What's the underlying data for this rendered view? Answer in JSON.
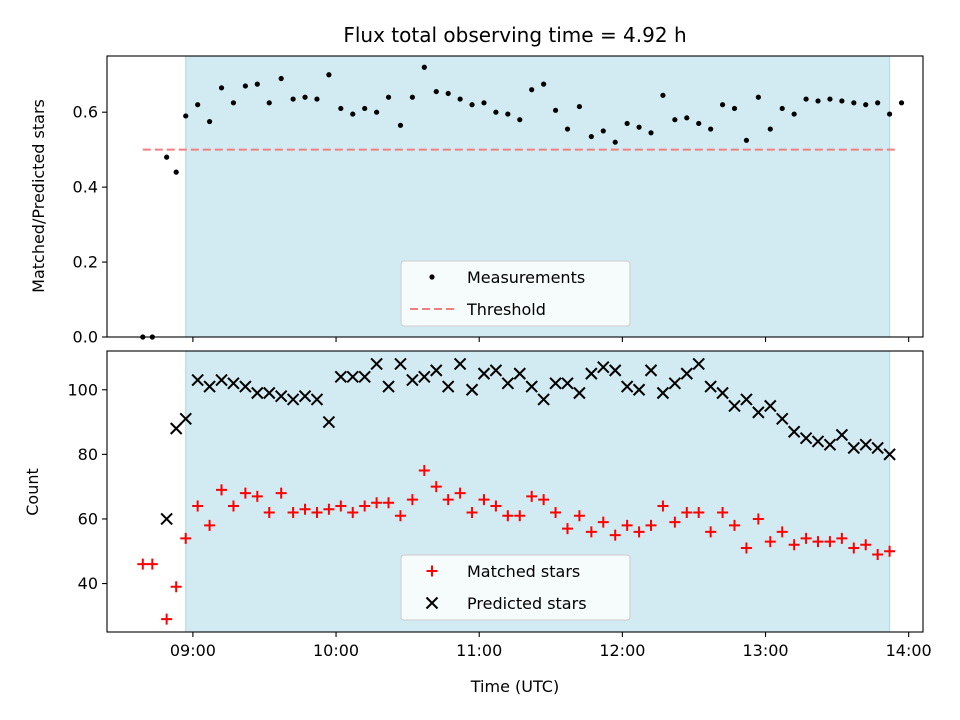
{
  "chart_data": [
    {
      "type": "scatter",
      "title": "Flux total observing time = 4.92 h",
      "xlabel": "",
      "ylabel": "Matched/Predicted stars",
      "ylim": [
        0,
        0.75
      ],
      "yticks": [
        0.0,
        0.2,
        0.4,
        0.6
      ],
      "ytick_labels": [
        "0.0",
        "0.2",
        "0.4",
        "0.6"
      ],
      "xlim": [
        "08:24",
        "14:06"
      ],
      "xticks": [
        "09:00",
        "10:00",
        "11:00",
        "12:00",
        "13:00",
        "14:00"
      ],
      "shaded_range": [
        "08:57",
        "13:52"
      ],
      "shade_color": "#add8e6",
      "threshold": {
        "label": "Threshold",
        "value": 0.5,
        "xrange": [
          "08:39",
          "13:55"
        ],
        "color": "#f08080",
        "style": "dashed"
      },
      "legend": {
        "placement": "lower center",
        "entries": [
          "Measurements",
          "Threshold"
        ]
      },
      "series": [
        {
          "name": "Measurements",
          "marker": "dot",
          "color": "#000000",
          "points": [
            {
              "x": "08:39",
              "y": 0.0
            },
            {
              "x": "08:43",
              "y": 0.0
            },
            {
              "x": "08:49",
              "y": 0.48
            },
            {
              "x": "08:53",
              "y": 0.44
            },
            {
              "x": "08:57",
              "y": 0.59
            },
            {
              "x": "09:02",
              "y": 0.62
            },
            {
              "x": "09:07",
              "y": 0.575
            },
            {
              "x": "09:12",
              "y": 0.665
            },
            {
              "x": "09:17",
              "y": 0.625
            },
            {
              "x": "09:22",
              "y": 0.67
            },
            {
              "x": "09:27",
              "y": 0.675
            },
            {
              "x": "09:32",
              "y": 0.625
            },
            {
              "x": "09:37",
              "y": 0.69
            },
            {
              "x": "09:42",
              "y": 0.635
            },
            {
              "x": "09:47",
              "y": 0.64
            },
            {
              "x": "09:52",
              "y": 0.635
            },
            {
              "x": "09:57",
              "y": 0.7
            },
            {
              "x": "10:02",
              "y": 0.61
            },
            {
              "x": "10:07",
              "y": 0.595
            },
            {
              "x": "10:12",
              "y": 0.61
            },
            {
              "x": "10:17",
              "y": 0.6
            },
            {
              "x": "10:22",
              "y": 0.64
            },
            {
              "x": "10:27",
              "y": 0.565
            },
            {
              "x": "10:32",
              "y": 0.64
            },
            {
              "x": "10:37",
              "y": 0.72
            },
            {
              "x": "10:42",
              "y": 0.655
            },
            {
              "x": "10:47",
              "y": 0.65
            },
            {
              "x": "10:52",
              "y": 0.635
            },
            {
              "x": "10:57",
              "y": 0.62
            },
            {
              "x": "11:02",
              "y": 0.625
            },
            {
              "x": "11:07",
              "y": 0.6
            },
            {
              "x": "11:12",
              "y": 0.595
            },
            {
              "x": "11:17",
              "y": 0.58
            },
            {
              "x": "11:22",
              "y": 0.66
            },
            {
              "x": "11:27",
              "y": 0.675
            },
            {
              "x": "11:32",
              "y": 0.605
            },
            {
              "x": "11:37",
              "y": 0.555
            },
            {
              "x": "11:42",
              "y": 0.615
            },
            {
              "x": "11:47",
              "y": 0.535
            },
            {
              "x": "11:52",
              "y": 0.55
            },
            {
              "x": "11:57",
              "y": 0.52
            },
            {
              "x": "12:02",
              "y": 0.57
            },
            {
              "x": "12:07",
              "y": 0.56
            },
            {
              "x": "12:12",
              "y": 0.545
            },
            {
              "x": "12:17",
              "y": 0.645
            },
            {
              "x": "12:22",
              "y": 0.58
            },
            {
              "x": "12:27",
              "y": 0.585
            },
            {
              "x": "12:32",
              "y": 0.57
            },
            {
              "x": "12:37",
              "y": 0.555
            },
            {
              "x": "12:42",
              "y": 0.62
            },
            {
              "x": "12:47",
              "y": 0.61
            },
            {
              "x": "12:52",
              "y": 0.525
            },
            {
              "x": "12:57",
              "y": 0.64
            },
            {
              "x": "13:02",
              "y": 0.555
            },
            {
              "x": "13:07",
              "y": 0.61
            },
            {
              "x": "13:12",
              "y": 0.595
            },
            {
              "x": "13:17",
              "y": 0.635
            },
            {
              "x": "13:22",
              "y": 0.63
            },
            {
              "x": "13:27",
              "y": 0.635
            },
            {
              "x": "13:32",
              "y": 0.63
            },
            {
              "x": "13:37",
              "y": 0.625
            },
            {
              "x": "13:42",
              "y": 0.62
            },
            {
              "x": "13:47",
              "y": 0.625
            },
            {
              "x": "13:52",
              "y": 0.595
            },
            {
              "x": "13:57",
              "y": 0.625
            }
          ]
        }
      ]
    },
    {
      "type": "scatter",
      "title": "",
      "xlabel": "Time (UTC)",
      "ylabel": "Count",
      "ylim": [
        25,
        112
      ],
      "yticks": [
        40,
        60,
        80,
        100
      ],
      "xlim": [
        "08:24",
        "14:06"
      ],
      "xticks": [
        "09:00",
        "10:00",
        "11:00",
        "12:00",
        "13:00",
        "14:00"
      ],
      "shaded_range": [
        "08:57",
        "13:52"
      ],
      "shade_color": "#add8e6",
      "legend": {
        "placement": "lower center",
        "entries": [
          "Matched stars",
          "Predicted stars"
        ]
      },
      "series": [
        {
          "name": "Matched stars",
          "marker": "plus",
          "color": "#ff0000",
          "points": [
            {
              "x": "08:39",
              "y": 46
            },
            {
              "x": "08:43",
              "y": 46
            },
            {
              "x": "08:49",
              "y": 29
            },
            {
              "x": "08:53",
              "y": 39
            },
            {
              "x": "08:57",
              "y": 54
            },
            {
              "x": "09:02",
              "y": 64
            },
            {
              "x": "09:07",
              "y": 58
            },
            {
              "x": "09:12",
              "y": 69
            },
            {
              "x": "09:17",
              "y": 64
            },
            {
              "x": "09:22",
              "y": 68
            },
            {
              "x": "09:27",
              "y": 67
            },
            {
              "x": "09:32",
              "y": 62
            },
            {
              "x": "09:37",
              "y": 68
            },
            {
              "x": "09:42",
              "y": 62
            },
            {
              "x": "09:47",
              "y": 63
            },
            {
              "x": "09:52",
              "y": 62
            },
            {
              "x": "09:57",
              "y": 63
            },
            {
              "x": "10:02",
              "y": 64
            },
            {
              "x": "10:07",
              "y": 62
            },
            {
              "x": "10:12",
              "y": 64
            },
            {
              "x": "10:17",
              "y": 65
            },
            {
              "x": "10:22",
              "y": 65
            },
            {
              "x": "10:27",
              "y": 61
            },
            {
              "x": "10:32",
              "y": 66
            },
            {
              "x": "10:37",
              "y": 75
            },
            {
              "x": "10:42",
              "y": 70
            },
            {
              "x": "10:47",
              "y": 66
            },
            {
              "x": "10:52",
              "y": 68
            },
            {
              "x": "10:57",
              "y": 62
            },
            {
              "x": "11:02",
              "y": 66
            },
            {
              "x": "11:07",
              "y": 64
            },
            {
              "x": "11:12",
              "y": 61
            },
            {
              "x": "11:17",
              "y": 61
            },
            {
              "x": "11:22",
              "y": 67
            },
            {
              "x": "11:27",
              "y": 66
            },
            {
              "x": "11:32",
              "y": 62
            },
            {
              "x": "11:37",
              "y": 57
            },
            {
              "x": "11:42",
              "y": 61
            },
            {
              "x": "11:47",
              "y": 56
            },
            {
              "x": "11:52",
              "y": 59
            },
            {
              "x": "11:57",
              "y": 55
            },
            {
              "x": "12:02",
              "y": 58
            },
            {
              "x": "12:07",
              "y": 56
            },
            {
              "x": "12:12",
              "y": 58
            },
            {
              "x": "12:17",
              "y": 64
            },
            {
              "x": "12:22",
              "y": 59
            },
            {
              "x": "12:27",
              "y": 62
            },
            {
              "x": "12:32",
              "y": 62
            },
            {
              "x": "12:37",
              "y": 56
            },
            {
              "x": "12:42",
              "y": 62
            },
            {
              "x": "12:47",
              "y": 58
            },
            {
              "x": "12:52",
              "y": 51
            },
            {
              "x": "12:57",
              "y": 60
            },
            {
              "x": "13:02",
              "y": 53
            },
            {
              "x": "13:07",
              "y": 56
            },
            {
              "x": "13:12",
              "y": 52
            },
            {
              "x": "13:17",
              "y": 54
            },
            {
              "x": "13:22",
              "y": 53
            },
            {
              "x": "13:27",
              "y": 53
            },
            {
              "x": "13:32",
              "y": 54
            },
            {
              "x": "13:37",
              "y": 51
            },
            {
              "x": "13:42",
              "y": 52
            },
            {
              "x": "13:47",
              "y": 49
            },
            {
              "x": "13:52",
              "y": 50
            }
          ]
        },
        {
          "name": "Predicted stars",
          "marker": "x",
          "color": "#000000",
          "points": [
            {
              "x": "08:49",
              "y": 60
            },
            {
              "x": "08:53",
              "y": 88
            },
            {
              "x": "08:57",
              "y": 91
            },
            {
              "x": "09:02",
              "y": 103
            },
            {
              "x": "09:07",
              "y": 101
            },
            {
              "x": "09:12",
              "y": 103
            },
            {
              "x": "09:17",
              "y": 102
            },
            {
              "x": "09:22",
              "y": 101
            },
            {
              "x": "09:27",
              "y": 99
            },
            {
              "x": "09:32",
              "y": 99
            },
            {
              "x": "09:37",
              "y": 98
            },
            {
              "x": "09:42",
              "y": 97
            },
            {
              "x": "09:47",
              "y": 98
            },
            {
              "x": "09:52",
              "y": 97
            },
            {
              "x": "09:57",
              "y": 90
            },
            {
              "x": "10:02",
              "y": 104
            },
            {
              "x": "10:07",
              "y": 104
            },
            {
              "x": "10:12",
              "y": 104
            },
            {
              "x": "10:17",
              "y": 108
            },
            {
              "x": "10:22",
              "y": 101
            },
            {
              "x": "10:27",
              "y": 108
            },
            {
              "x": "10:32",
              "y": 103
            },
            {
              "x": "10:37",
              "y": 104
            },
            {
              "x": "10:42",
              "y": 106
            },
            {
              "x": "10:47",
              "y": 101
            },
            {
              "x": "10:52",
              "y": 108
            },
            {
              "x": "10:57",
              "y": 100
            },
            {
              "x": "11:02",
              "y": 105
            },
            {
              "x": "11:07",
              "y": 106
            },
            {
              "x": "11:12",
              "y": 102
            },
            {
              "x": "11:17",
              "y": 105
            },
            {
              "x": "11:22",
              "y": 101
            },
            {
              "x": "11:27",
              "y": 97
            },
            {
              "x": "11:32",
              "y": 102
            },
            {
              "x": "11:37",
              "y": 102
            },
            {
              "x": "11:42",
              "y": 99
            },
            {
              "x": "11:47",
              "y": 105
            },
            {
              "x": "11:52",
              "y": 107
            },
            {
              "x": "11:57",
              "y": 106
            },
            {
              "x": "12:02",
              "y": 101
            },
            {
              "x": "12:07",
              "y": 100
            },
            {
              "x": "12:12",
              "y": 106
            },
            {
              "x": "12:17",
              "y": 99
            },
            {
              "x": "12:22",
              "y": 102
            },
            {
              "x": "12:27",
              "y": 105
            },
            {
              "x": "12:32",
              "y": 108
            },
            {
              "x": "12:37",
              "y": 101
            },
            {
              "x": "12:42",
              "y": 99
            },
            {
              "x": "12:47",
              "y": 95
            },
            {
              "x": "12:52",
              "y": 97
            },
            {
              "x": "12:57",
              "y": 93
            },
            {
              "x": "13:02",
              "y": 95
            },
            {
              "x": "13:07",
              "y": 91
            },
            {
              "x": "13:12",
              "y": 87
            },
            {
              "x": "13:17",
              "y": 85
            },
            {
              "x": "13:22",
              "y": 84
            },
            {
              "x": "13:27",
              "y": 83
            },
            {
              "x": "13:32",
              "y": 86
            },
            {
              "x": "13:37",
              "y": 82
            },
            {
              "x": "13:42",
              "y": 83
            },
            {
              "x": "13:47",
              "y": 82
            },
            {
              "x": "13:52",
              "y": 80
            }
          ]
        }
      ]
    }
  ]
}
